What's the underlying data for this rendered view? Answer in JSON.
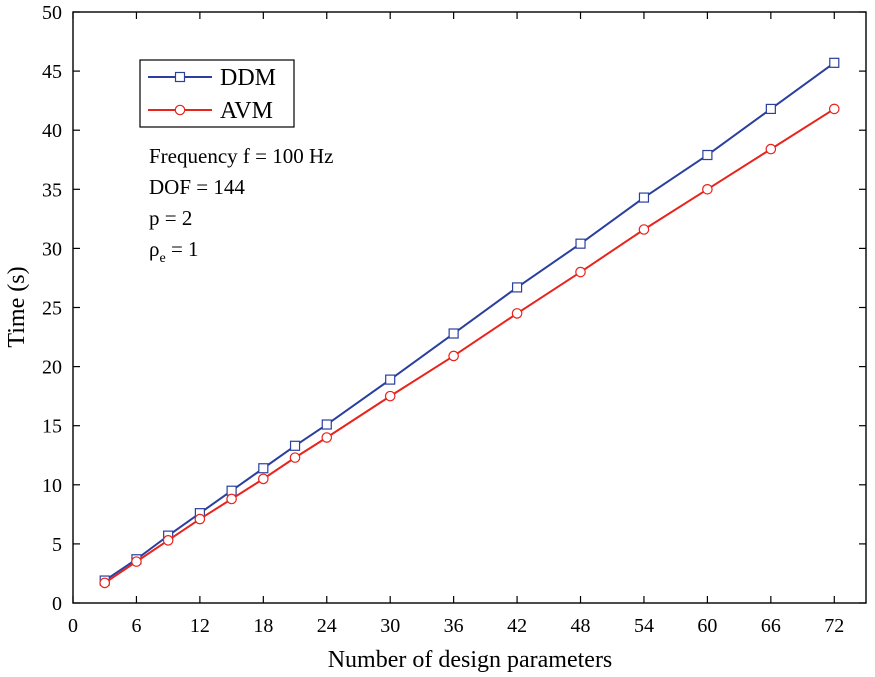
{
  "chart_data": {
    "type": "line",
    "title": "",
    "xlabel": "Number of design parameters",
    "ylabel": "Time (s)",
    "xlim": [
      0,
      75
    ],
    "ylim": [
      0,
      50
    ],
    "xticks": [
      0,
      6,
      12,
      18,
      24,
      30,
      36,
      42,
      48,
      54,
      60,
      66,
      72
    ],
    "yticks": [
      0,
      5,
      10,
      15,
      20,
      25,
      30,
      35,
      40,
      45,
      50
    ],
    "grid": false,
    "legend_position": "top-left",
    "x": [
      3,
      6,
      9,
      12,
      15,
      18,
      21,
      24,
      30,
      36,
      42,
      48,
      54,
      60,
      66,
      72
    ],
    "series": [
      {
        "name": "DDM",
        "color": "#2a3f9e",
        "marker": "square",
        "values": [
          1.9,
          3.7,
          5.7,
          7.6,
          9.5,
          11.4,
          13.3,
          15.1,
          18.9,
          22.8,
          26.7,
          30.4,
          34.3,
          37.9,
          41.8,
          45.7
        ]
      },
      {
        "name": "AVM",
        "color": "#e8241c",
        "marker": "circle",
        "values": [
          1.7,
          3.5,
          5.3,
          7.1,
          8.8,
          10.5,
          12.3,
          14.0,
          17.5,
          20.9,
          24.5,
          28.0,
          31.6,
          35.0,
          38.4,
          41.8
        ]
      }
    ],
    "annotations": {
      "frequency": "Frequency f = 100 Hz",
      "dof": "DOF = 144",
      "p": "p = 2",
      "rho_symbol": "ρ",
      "rho_subscript": "e",
      "rho_value": " = 1"
    }
  }
}
